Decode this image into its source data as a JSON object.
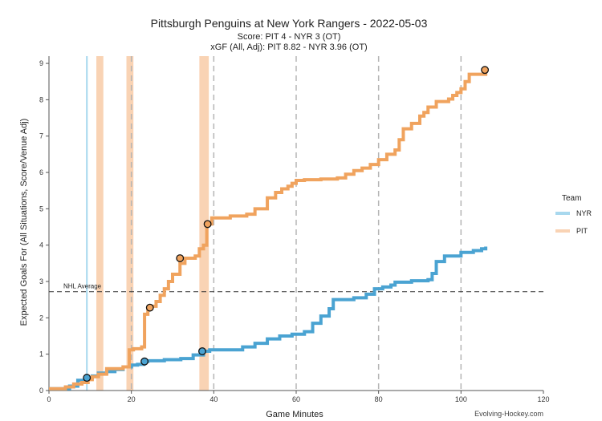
{
  "chart_data": {
    "type": "line",
    "title": "Pittsburgh Penguins at New York Rangers - 2022-05-03",
    "subtitle1": "Score: PIT 4 - NYR 3 (OT)",
    "subtitle2": "xGF (All, Adj): PIT 8.82 - NYR 3.96 (OT)",
    "xlabel": "Game Minutes",
    "ylabel": "Expected Goals For (All Situations, Score/Venue Adj)",
    "xlim": [
      0,
      120
    ],
    "ylim": [
      0,
      9.2
    ],
    "x_ticks": [
      "0",
      "20",
      "40",
      "60",
      "80",
      "100",
      "120"
    ],
    "x_tick_values": [
      0,
      20,
      40,
      60,
      80,
      100,
      120
    ],
    "y_ticks": [
      "0",
      "1",
      "2",
      "3",
      "4",
      "5",
      "6",
      "7",
      "8",
      "9"
    ],
    "y_tick_values": [
      0,
      1,
      2,
      3,
      4,
      5,
      6,
      7,
      8,
      9
    ],
    "period_lines": [
      20,
      40,
      60,
      80,
      100
    ],
    "nhl_average": 2.72,
    "nhl_average_label": "NHL Average",
    "legend_title": "Team",
    "legend_position": "right",
    "watermark": "Evolving-Hockey.com",
    "colors": {
      "NYR": "#4aa3d2",
      "PIT": "#f0a35e",
      "NYR_light": "#a8d8ee",
      "PIT_light": "#f9d3b4"
    },
    "series": [
      {
        "name": "NYR",
        "color": "#4aa3d2",
        "x": [
          0,
          5,
          7,
          9.2,
          10.5,
          12,
          14,
          16,
          18,
          20,
          21.5,
          23,
          24,
          28,
          32,
          35,
          37.5,
          39,
          47,
          50,
          53,
          56,
          59,
          62,
          64,
          66,
          68,
          69,
          74,
          77,
          79,
          81,
          83,
          84,
          88,
          92,
          93,
          94,
          96,
          100,
          103,
          105,
          106
        ],
        "y": [
          0.05,
          0.12,
          0.28,
          0.35,
          0.4,
          0.48,
          0.52,
          0.58,
          0.65,
          0.7,
          0.72,
          0.8,
          0.82,
          0.85,
          0.88,
          0.98,
          1.08,
          1.12,
          1.2,
          1.3,
          1.42,
          1.5,
          1.55,
          1.62,
          1.85,
          2.05,
          2.25,
          2.5,
          2.55,
          2.65,
          2.8,
          2.85,
          2.9,
          2.98,
          3.02,
          3.05,
          3.22,
          3.55,
          3.7,
          3.8,
          3.85,
          3.9,
          3.96
        ]
      },
      {
        "name": "PIT",
        "color": "#f0a35e",
        "x": [
          0,
          4,
          6,
          8,
          9.5,
          10.5,
          12,
          14,
          18,
          19.5,
          20.5,
          22.5,
          23.2,
          24,
          24.8,
          26,
          27,
          28,
          29,
          30,
          31.8,
          33,
          35.5,
          36.5,
          37.5,
          38.3,
          39.5,
          44,
          48,
          50,
          53,
          55,
          56.5,
          58,
          59,
          60,
          62,
          66,
          70,
          72,
          74,
          76,
          78,
          80,
          82,
          84,
          85,
          86,
          88,
          90,
          91,
          92,
          94,
          97,
          98,
          99,
          100,
          101,
          102,
          106
        ],
        "y": [
          0.05,
          0.1,
          0.18,
          0.22,
          0.3,
          0.38,
          0.45,
          0.6,
          0.65,
          1.12,
          1.15,
          1.2,
          2.1,
          2.28,
          2.32,
          2.45,
          2.62,
          2.8,
          3.0,
          3.2,
          3.5,
          3.64,
          3.7,
          3.9,
          4.0,
          4.58,
          4.75,
          4.8,
          4.85,
          5.0,
          5.3,
          5.45,
          5.55,
          5.62,
          5.7,
          5.78,
          5.8,
          5.82,
          5.85,
          5.95,
          6.05,
          6.12,
          6.22,
          6.35,
          6.5,
          6.62,
          6.9,
          7.2,
          7.35,
          7.55,
          7.65,
          7.8,
          7.95,
          8.02,
          8.12,
          8.2,
          8.3,
          8.5,
          8.7,
          8.82
        ]
      }
    ],
    "goals": [
      {
        "team": "NYR",
        "x": 9.2,
        "y": 0.35
      },
      {
        "team": "NYR",
        "x": 23.2,
        "y": 0.8
      },
      {
        "team": "NYR",
        "x": 37.2,
        "y": 1.08
      },
      {
        "team": "PIT",
        "x": 24.5,
        "y": 2.28
      },
      {
        "team": "PIT",
        "x": 31.8,
        "y": 3.64
      },
      {
        "team": "PIT",
        "x": 38.5,
        "y": 4.58
      },
      {
        "team": "PIT",
        "x": 105.8,
        "y": 8.82
      }
    ],
    "power_plays": [
      {
        "team": "NYR",
        "start": 9.0,
        "end": 9.4
      },
      {
        "team": "PIT",
        "start": 11.5,
        "end": 13.2
      },
      {
        "team": "PIT",
        "start": 18.8,
        "end": 20.5
      },
      {
        "team": "PIT",
        "start": 36.5,
        "end": 38.8
      }
    ]
  }
}
